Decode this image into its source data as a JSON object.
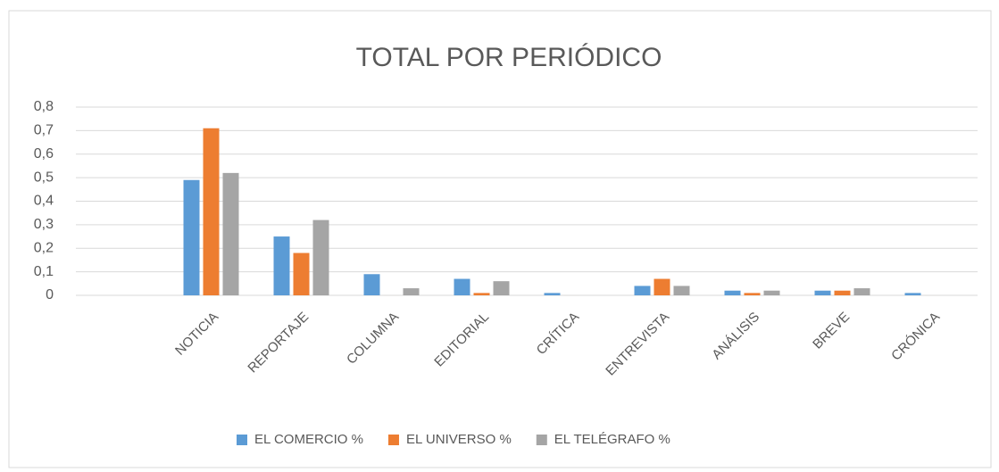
{
  "chart_data": {
    "type": "bar",
    "title": "TOTAL POR PERIÓDICO",
    "categories": [
      null,
      "NOTICIA",
      "REPORTAJE",
      "COLUMNA",
      "EDITORIAL",
      "CRÍTICA",
      "ENTREVISTA",
      "ANÁLISIS",
      "BREVE",
      "CRÓNICA"
    ],
    "series": [
      {
        "name": "EL COMERCIO %",
        "color": "#5b9bd5",
        "values": [
          null,
          0.49,
          0.25,
          0.09,
          0.07,
          0.01,
          0.04,
          0.02,
          0.02,
          0.01
        ]
      },
      {
        "name": "EL UNIVERSO %",
        "color": "#ed7d31",
        "values": [
          null,
          0.71,
          0.18,
          0,
          0.01,
          0,
          0.07,
          0.01,
          0.02,
          0
        ]
      },
      {
        "name": "EL TELÉGRAFO %",
        "color": "#a5a5a5",
        "values": [
          null,
          0.52,
          0.32,
          0.03,
          0.06,
          0,
          0.04,
          0.02,
          0.03,
          0
        ]
      }
    ],
    "ylim": [
      0,
      0.8
    ],
    "yticks": [
      {
        "value": 0,
        "label": "0"
      },
      {
        "value": 0.1,
        "label": "0,1"
      },
      {
        "value": 0.2,
        "label": "0,2"
      },
      {
        "value": 0.3,
        "label": "0,3"
      },
      {
        "value": 0.4,
        "label": "0,4"
      },
      {
        "value": 0.5,
        "label": "0,5"
      },
      {
        "value": 0.6,
        "label": "0,6"
      },
      {
        "value": 0.7,
        "label": "0,7"
      },
      {
        "value": 0.8,
        "label": "0,8"
      }
    ],
    "grid": true,
    "legend": "bottom"
  }
}
